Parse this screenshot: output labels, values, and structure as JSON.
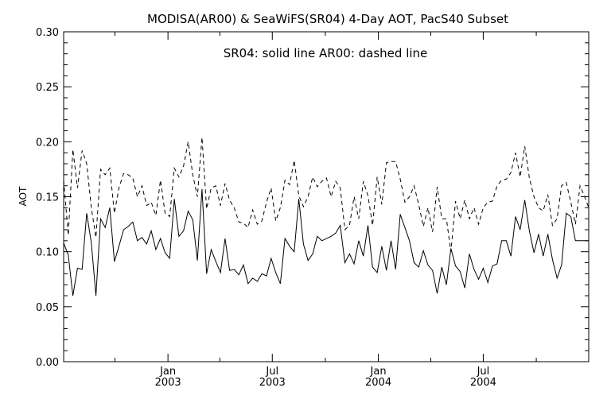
{
  "chart_data": {
    "type": "line",
    "title": "MODISA(AR00) & SeaWiFS(SR04) 4-Day AOT, PacS40 Subset",
    "annotation": "SR04: solid line   AR00: dashed line",
    "xlabel": "",
    "ylabel": "AOT",
    "ylim": [
      0.0,
      0.3
    ],
    "xlim": [
      "2002-07-04",
      "2004-12-31"
    ],
    "y_ticks": [
      "0.00",
      "0.05",
      "0.10",
      "0.15",
      "0.20",
      "0.25",
      "0.30"
    ],
    "x_ticks": [
      {
        "date": "2003-01-01",
        "line1": "Jan",
        "line2": "2003"
      },
      {
        "date": "2003-07-01",
        "line1": "Jul",
        "line2": "2003"
      },
      {
        "date": "2004-01-01",
        "line1": "Jan",
        "line2": "2004"
      },
      {
        "date": "2004-07-01",
        "line1": "Jul",
        "line2": "2004"
      }
    ],
    "x_minor_ticks": [
      "2002-10-01",
      "2003-04-01",
      "2003-10-01",
      "2004-04-01",
      "2004-10-01"
    ],
    "grid": false,
    "legend": "none",
    "series": [
      {
        "name": "SR04",
        "style": "solid",
        "color": "#000000",
        "x": [
          "2002-07-04",
          "2002-07-12",
          "2002-07-20",
          "2002-07-28",
          "2002-08-05",
          "2002-08-13",
          "2002-08-21",
          "2002-08-29",
          "2002-09-06",
          "2002-09-14",
          "2002-09-22",
          "2002-09-30",
          "2002-10-08",
          "2002-10-16",
          "2002-10-24",
          "2002-11-01",
          "2002-11-09",
          "2002-11-17",
          "2002-11-25",
          "2002-12-03",
          "2002-12-11",
          "2002-12-19",
          "2002-12-27",
          "2003-01-04",
          "2003-01-12",
          "2003-01-20",
          "2003-01-28",
          "2003-02-05",
          "2003-02-13",
          "2003-02-21",
          "2003-03-01",
          "2003-03-09",
          "2003-03-17",
          "2003-03-25",
          "2003-04-02",
          "2003-04-10",
          "2003-04-18",
          "2003-04-26",
          "2003-05-04",
          "2003-05-12",
          "2003-05-20",
          "2003-05-28",
          "2003-06-05",
          "2003-06-13",
          "2003-06-21",
          "2003-06-29",
          "2003-07-07",
          "2003-07-15",
          "2003-07-23",
          "2003-07-31",
          "2003-08-08",
          "2003-08-16",
          "2003-08-24",
          "2003-09-01",
          "2003-09-09",
          "2003-09-17",
          "2003-09-25",
          "2003-10-03",
          "2003-10-11",
          "2003-10-19",
          "2003-10-27",
          "2003-11-04",
          "2003-11-12",
          "2003-11-20",
          "2003-11-28",
          "2003-12-06",
          "2003-12-14",
          "2003-12-22",
          "2003-12-30",
          "2004-01-07",
          "2004-01-15",
          "2004-01-23",
          "2004-01-31",
          "2004-02-08",
          "2004-02-16",
          "2004-02-24",
          "2004-03-03",
          "2004-03-11",
          "2004-03-19",
          "2004-03-27",
          "2004-04-04",
          "2004-04-12",
          "2004-04-20",
          "2004-04-28",
          "2004-05-06",
          "2004-05-14",
          "2004-05-22",
          "2004-05-30",
          "2004-06-07",
          "2004-06-15",
          "2004-06-23",
          "2004-07-01",
          "2004-07-09",
          "2004-07-17",
          "2004-07-25",
          "2004-08-02",
          "2004-08-10",
          "2004-08-18",
          "2004-08-26",
          "2004-09-03",
          "2004-09-11",
          "2004-09-19",
          "2004-09-27",
          "2004-10-05",
          "2004-10-13",
          "2004-10-21",
          "2004-10-29",
          "2004-11-06",
          "2004-11-14",
          "2004-11-22",
          "2004-11-30",
          "2004-12-08",
          "2004-12-16",
          "2004-12-24",
          "2004-12-31"
        ],
        "y": [
          0.108,
          0.097,
          0.06,
          0.085,
          0.084,
          0.135,
          0.108,
          0.06,
          0.13,
          0.122,
          0.14,
          0.091,
          0.105,
          0.12,
          0.123,
          0.127,
          0.11,
          0.113,
          0.107,
          0.119,
          0.102,
          0.112,
          0.099,
          0.094,
          0.148,
          0.114,
          0.119,
          0.137,
          0.129,
          0.092,
          0.157,
          0.08,
          0.102,
          0.091,
          0.081,
          0.112,
          0.083,
          0.084,
          0.079,
          0.088,
          0.071,
          0.076,
          0.073,
          0.08,
          0.078,
          0.094,
          0.081,
          0.071,
          0.112,
          0.105,
          0.1,
          0.148,
          0.107,
          0.092,
          0.098,
          0.114,
          0.11,
          0.112,
          0.114,
          0.117,
          0.124,
          0.09,
          0.098,
          0.089,
          0.11,
          0.096,
          0.124,
          0.086,
          0.081,
          0.105,
          0.083,
          0.11,
          0.084,
          0.134,
          0.122,
          0.11,
          0.09,
          0.086,
          0.101,
          0.088,
          0.083,
          0.062,
          0.086,
          0.07,
          0.103,
          0.087,
          0.082,
          0.067,
          0.098,
          0.084,
          0.075,
          0.085,
          0.072,
          0.087,
          0.089,
          0.11,
          0.11,
          0.096,
          0.132,
          0.12,
          0.147,
          0.119,
          0.099,
          0.116,
          0.096,
          0.116,
          0.093,
          0.076,
          0.088,
          0.135,
          0.132,
          0.11,
          0.11,
          0.11,
          0.11
        ]
      },
      {
        "name": "AR00",
        "style": "dashed",
        "color": "#000000",
        "x": [
          "2002-07-04",
          "2002-07-12",
          "2002-07-20",
          "2002-07-28",
          "2002-08-05",
          "2002-08-13",
          "2002-08-21",
          "2002-08-29",
          "2002-09-06",
          "2002-09-14",
          "2002-09-22",
          "2002-09-30",
          "2002-10-08",
          "2002-10-16",
          "2002-10-24",
          "2002-11-01",
          "2002-11-09",
          "2002-11-17",
          "2002-11-25",
          "2002-12-03",
          "2002-12-11",
          "2002-12-19",
          "2002-12-27",
          "2003-01-04",
          "2003-01-12",
          "2003-01-20",
          "2003-01-28",
          "2003-02-05",
          "2003-02-13",
          "2003-02-21",
          "2003-03-01",
          "2003-03-09",
          "2003-03-17",
          "2003-03-25",
          "2003-04-02",
          "2003-04-10",
          "2003-04-18",
          "2003-04-26",
          "2003-05-04",
          "2003-05-12",
          "2003-05-20",
          "2003-05-28",
          "2003-06-05",
          "2003-06-13",
          "2003-06-21",
          "2003-06-29",
          "2003-07-07",
          "2003-07-15",
          "2003-07-23",
          "2003-07-31",
          "2003-08-08",
          "2003-08-16",
          "2003-08-24",
          "2003-09-01",
          "2003-09-09",
          "2003-09-17",
          "2003-09-25",
          "2003-10-03",
          "2003-10-11",
          "2003-10-19",
          "2003-10-27",
          "2003-11-04",
          "2003-11-12",
          "2003-11-20",
          "2003-11-28",
          "2003-12-06",
          "2003-12-14",
          "2003-12-22",
          "2003-12-30",
          "2004-01-07",
          "2004-01-15",
          "2004-01-23",
          "2004-01-31",
          "2004-02-08",
          "2004-02-16",
          "2004-02-24",
          "2004-03-03",
          "2004-03-11",
          "2004-03-19",
          "2004-03-27",
          "2004-04-04",
          "2004-04-12",
          "2004-04-20",
          "2004-04-28",
          "2004-05-06",
          "2004-05-14",
          "2004-05-22",
          "2004-05-30",
          "2004-06-07",
          "2004-06-15",
          "2004-06-23",
          "2004-07-01",
          "2004-07-09",
          "2004-07-17",
          "2004-07-25",
          "2004-08-02",
          "2004-08-10",
          "2004-08-18",
          "2004-08-26",
          "2004-09-03",
          "2004-09-11",
          "2004-09-19",
          "2004-09-27",
          "2004-10-05",
          "2004-10-13",
          "2004-10-21",
          "2004-10-29",
          "2004-11-06",
          "2004-11-14",
          "2004-11-22",
          "2004-11-30",
          "2004-12-08",
          "2004-12-16",
          "2004-12-24",
          "2004-12-31"
        ],
        "y": [
          0.165,
          0.115,
          0.193,
          0.158,
          0.192,
          0.18,
          0.14,
          0.113,
          0.175,
          0.17,
          0.176,
          0.135,
          0.158,
          0.171,
          0.17,
          0.167,
          0.15,
          0.16,
          0.142,
          0.145,
          0.133,
          0.165,
          0.135,
          0.132,
          0.176,
          0.168,
          0.178,
          0.2,
          0.17,
          0.15,
          0.204,
          0.139,
          0.158,
          0.16,
          0.142,
          0.162,
          0.147,
          0.14,
          0.127,
          0.126,
          0.122,
          0.138,
          0.125,
          0.128,
          0.145,
          0.158,
          0.128,
          0.14,
          0.165,
          0.161,
          0.183,
          0.151,
          0.141,
          0.15,
          0.168,
          0.159,
          0.164,
          0.167,
          0.15,
          0.164,
          0.158,
          0.12,
          0.124,
          0.15,
          0.13,
          0.164,
          0.151,
          0.124,
          0.168,
          0.143,
          0.181,
          0.182,
          0.182,
          0.166,
          0.145,
          0.15,
          0.16,
          0.143,
          0.123,
          0.14,
          0.118,
          0.159,
          0.13,
          0.13,
          0.1,
          0.146,
          0.13,
          0.147,
          0.13,
          0.14,
          0.125,
          0.14,
          0.145,
          0.146,
          0.16,
          0.165,
          0.166,
          0.172,
          0.19,
          0.168,
          0.196,
          0.167,
          0.15,
          0.14,
          0.137,
          0.152,
          0.124,
          0.13,
          0.16,
          0.163,
          0.145,
          0.125,
          0.16,
          0.15,
          0.14
        ]
      }
    ]
  }
}
